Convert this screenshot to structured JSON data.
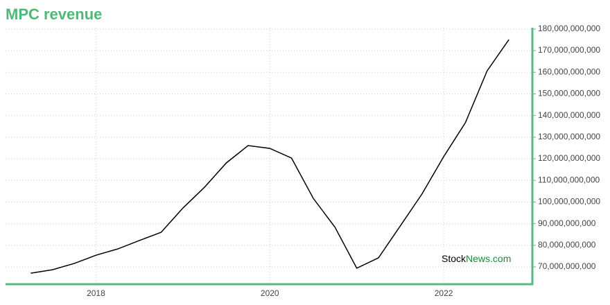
{
  "chart_data": {
    "type": "line",
    "title": "MPC revenue",
    "x": [
      2017.25,
      2017.5,
      2017.75,
      2018,
      2018.25,
      2018.5,
      2018.75,
      2019,
      2019.25,
      2019.5,
      2019.75,
      2020,
      2020.25,
      2020.5,
      2020.75,
      2021,
      2021.25,
      2021.5,
      2021.75,
      2022,
      2022.25,
      2022.5,
      2022.75
    ],
    "series": [
      {
        "name": "MPC revenue",
        "color": "#000000",
        "values": [
          67100000000,
          68700000000,
          71600000000,
          75400000000,
          78300000000,
          82200000000,
          86000000000,
          97200000000,
          106900000000,
          118100000000,
          126100000000,
          124800000000,
          120300000000,
          101700000000,
          88300000000,
          69400000000,
          74200000000,
          88900000000,
          103700000000,
          121000000000,
          136700000000,
          160700000000,
          175100000000
        ]
      }
    ],
    "xlim": [
      2016.96,
      2023.02
    ],
    "xticks": [
      2018,
      2020,
      2022
    ],
    "ylim": [
      62000000000,
      180600000000
    ],
    "yticks": [
      {
        "value": 70000000000,
        "label": "70,000,000,000"
      },
      {
        "value": 80000000000,
        "label": "80,000,000,000"
      },
      {
        "value": 90000000000,
        "label": "90,000,000,000"
      },
      {
        "value": 100000000000,
        "label": "100,000,000,000"
      },
      {
        "value": 110000000000,
        "label": "110,000,000,000"
      },
      {
        "value": 120000000000,
        "label": "120,000,000,000"
      },
      {
        "value": 130000000000,
        "label": "130,000,000,000"
      },
      {
        "value": 140000000000,
        "label": "140,000,000,000"
      },
      {
        "value": 150000000000,
        "label": "150,000,000,000"
      },
      {
        "value": 160000000000,
        "label": "160,000,000,000"
      },
      {
        "value": 170000000000,
        "label": "170,000,000,000"
      },
      {
        "value": 180000000000,
        "label": "180,000,000,000"
      }
    ],
    "grid": true,
    "watermark": [
      "Stock",
      "News.com"
    ],
    "watermark_colors": [
      "#000000",
      "#1a8a3a"
    ]
  }
}
